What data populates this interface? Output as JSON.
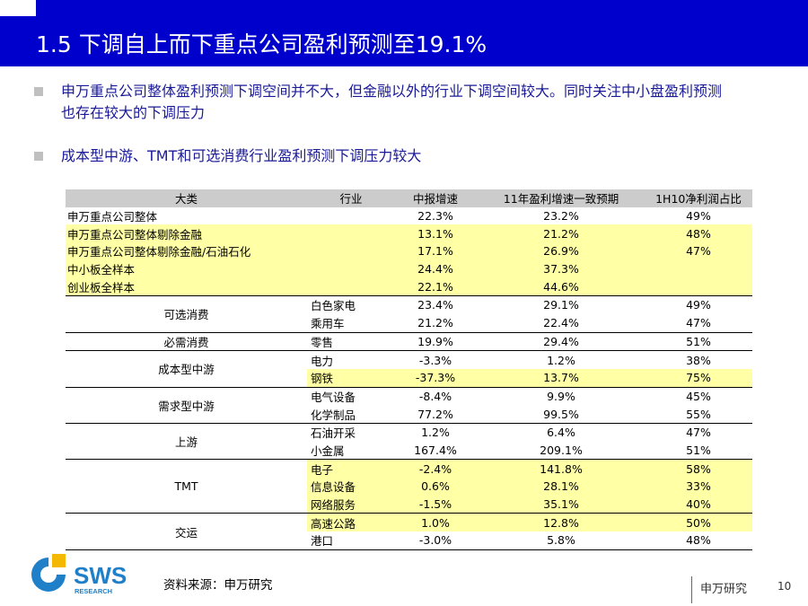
{
  "title": "1.5 下调自上而下重点公司盈利预测至19.1%",
  "bullets": [
    "申万重点公司整体盈利预测下调空间并不大，但金融以外的行业下调空间较大。同时关注中小盘盈利预测也存在较大的下调压力",
    "成本型中游、TMT和可选消费行业盈利预测下调压力较大"
  ],
  "table": {
    "headers": [
      "大类",
      "行业",
      "中报增速",
      "11年盈利增速一致预期",
      "1H10净利润占比"
    ],
    "rows": [
      {
        "cat": "申万重点公司整体",
        "g": "22.3%",
        "f": "23.2%",
        "p": "49%"
      },
      {
        "cat": "申万重点公司整体剔除金融",
        "g": "13.1%",
        "f": "21.2%",
        "p": "48%"
      },
      {
        "cat": "申万重点公司整体剔除金融/石油石化",
        "g": "17.1%",
        "f": "26.9%",
        "p": "47%"
      },
      {
        "cat": "中小板全样本",
        "g": "24.4%",
        "f": "37.3%",
        "p": ""
      },
      {
        "cat": "创业板全样本",
        "g": "22.1%",
        "f": "44.6%",
        "p": ""
      }
    ],
    "groups": [
      {
        "name": "可选消费",
        "items": [
          {
            "ind": "白色家电",
            "g": "23.4%",
            "f": "29.1%",
            "p": "49%"
          },
          {
            "ind": "乘用车",
            "g": "21.2%",
            "f": "22.4%",
            "p": "47%"
          }
        ]
      },
      {
        "name": "必需消费",
        "items": [
          {
            "ind": "零售",
            "g": "19.9%",
            "f": "29.4%",
            "p": "51%"
          }
        ]
      },
      {
        "name": "成本型中游",
        "items": [
          {
            "ind": "电力",
            "g": "-3.3%",
            "f": "1.2%",
            "p": "38%"
          },
          {
            "ind": "钢铁",
            "g": "-37.3%",
            "f": "13.7%",
            "p": "75%"
          }
        ]
      },
      {
        "name": "需求型中游",
        "items": [
          {
            "ind": "电气设备",
            "g": "-8.4%",
            "f": "9.9%",
            "p": "45%"
          },
          {
            "ind": "化学制品",
            "g": "77.2%",
            "f": "99.5%",
            "p": "55%"
          }
        ]
      },
      {
        "name": "上游",
        "items": [
          {
            "ind": "石油开采",
            "g": "1.2%",
            "f": "6.4%",
            "p": "47%"
          },
          {
            "ind": "小金属",
            "g": "167.4%",
            "f": "209.1%",
            "p": "51%"
          }
        ]
      },
      {
        "name": "TMT",
        "items": [
          {
            "ind": "电子",
            "g": "-2.4%",
            "f": "141.8%",
            "p": "58%"
          },
          {
            "ind": "信息设备",
            "g": "0.6%",
            "f": "28.1%",
            "p": "33%"
          },
          {
            "ind": "网络服务",
            "g": "-1.5%",
            "f": "35.1%",
            "p": "40%"
          }
        ]
      },
      {
        "name": "交运",
        "items": [
          {
            "ind": "高速公路",
            "g": "1.0%",
            "f": "12.8%",
            "p": "50%"
          },
          {
            "ind": "港口",
            "g": "-3.0%",
            "f": "5.8%",
            "p": "48%"
          }
        ]
      }
    ]
  },
  "source": "资料来源：申万研究",
  "brand": "申万研究",
  "page_number": "10",
  "logo": {
    "text": "SWS",
    "subtext": "RESEARCH",
    "colors": {
      "primary": "#1f7fc8",
      "accent": "#f5b800"
    }
  }
}
